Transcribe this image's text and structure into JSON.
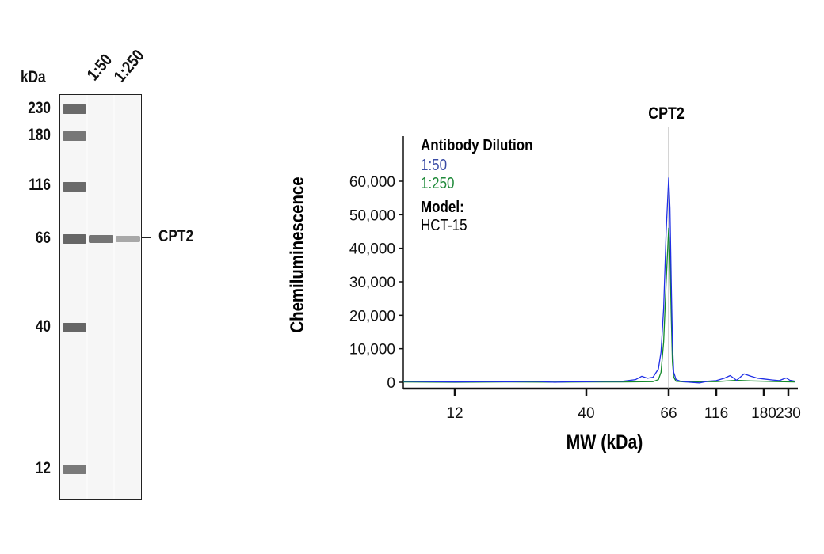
{
  "blot": {
    "unit_label": "kDa",
    "lanes": [
      "1:50",
      "1:250"
    ],
    "markers": [
      230,
      180,
      116,
      66,
      40,
      12
    ],
    "target_label": "CPT2",
    "target_mw": 66,
    "band_intensity": {
      "1:50": 0.8,
      "1:250": 0.45
    }
  },
  "chart_data": {
    "type": "line",
    "title": "CPT2",
    "xlabel": "MW (kDa)",
    "ylabel": "Chemiluminescence",
    "x_ticks": [
      12,
      40,
      66,
      116,
      180,
      230
    ],
    "y_ticks": [
      0,
      10000,
      20000,
      30000,
      40000,
      50000,
      60000
    ],
    "y_tick_labels": [
      "0",
      "10,000",
      "20,000",
      "30,000",
      "40,000",
      "50,000",
      "60,000"
    ],
    "ylim": [
      0,
      70000
    ],
    "marker_line_x": 66,
    "legend": {
      "title": "Antibody Dilution",
      "model_title": "Model:",
      "model": "HCT-15",
      "placement": "top-left"
    },
    "series": [
      {
        "name": "1:50",
        "color": "#1f2fe6",
        "label_color": "#3b4da6",
        "x": [
          7,
          10,
          12,
          16,
          20,
          25,
          30,
          35,
          40,
          45,
          50,
          54,
          56,
          58,
          60,
          62,
          63,
          64,
          65,
          66,
          67,
          68,
          69,
          70,
          72,
          76,
          85,
          95,
          105,
          116,
          125,
          132,
          140,
          150,
          160,
          170,
          180,
          195,
          210,
          225,
          235,
          250
        ],
        "y": [
          300,
          150,
          100,
          200,
          150,
          250,
          0,
          200,
          150,
          300,
          300,
          800,
          1800,
          1200,
          1500,
          4000,
          9000,
          22000,
          45000,
          61000,
          52000,
          30000,
          12000,
          3000,
          800,
          300,
          0,
          -200,
          300,
          500,
          1200,
          2000,
          600,
          2500,
          1800,
          1200,
          1000,
          700,
          500,
          1300,
          600,
          300
        ]
      },
      {
        "name": "1:250",
        "color": "#138a2a",
        "label_color": "#1f8a3a",
        "x": [
          7,
          12,
          20,
          30,
          40,
          50,
          56,
          60,
          62,
          63,
          64,
          65,
          66,
          67,
          68,
          69,
          70,
          72,
          80,
          100,
          116,
          140,
          160,
          180,
          210,
          250
        ],
        "y": [
          100,
          0,
          100,
          50,
          100,
          100,
          150,
          200,
          800,
          3000,
          12000,
          30000,
          46000,
          38000,
          20000,
          6000,
          1500,
          300,
          100,
          200,
          200,
          600,
          400,
          300,
          200,
          100
        ]
      }
    ]
  }
}
